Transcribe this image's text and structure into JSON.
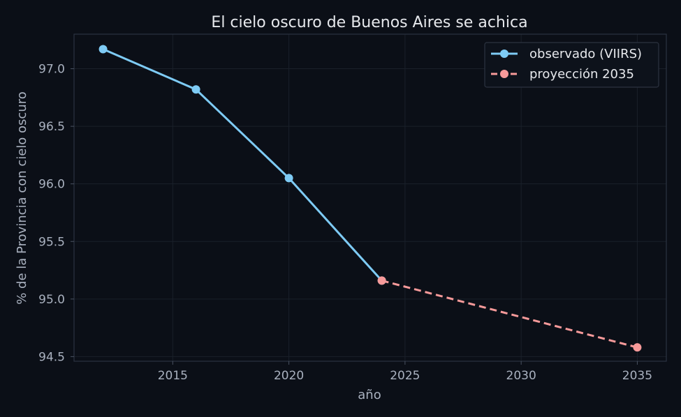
{
  "chart_data": {
    "type": "line",
    "title": "El cielo oscuro de Buenos Aires se achica",
    "xlabel": "año",
    "ylabel": "% de la Provincia con cielo oscuro",
    "xlim": [
      2010.75,
      2036.25
    ],
    "ylim": [
      94.46,
      97.3
    ],
    "xticks": [
      2015,
      2020,
      2025,
      2030,
      2035
    ],
    "yticks": [
      94.5,
      95.0,
      95.5,
      96.0,
      96.5,
      97.0
    ],
    "xtick_labels": [
      "2015",
      "2020",
      "2025",
      "2030",
      "2035"
    ],
    "ytick_labels": [
      "94.5",
      "95.0",
      "95.5",
      "96.0",
      "96.5",
      "97.0"
    ],
    "grid": true,
    "legend_position": "top-right",
    "series": [
      {
        "name": "observado (VIIRS)",
        "color": "#7ecbf5",
        "style": "solid",
        "x": [
          2012,
          2016,
          2020,
          2024
        ],
        "y": [
          97.17,
          96.82,
          96.05,
          95.16
        ]
      },
      {
        "name": "proyección 2035",
        "color": "#f79a9a",
        "style": "dashed",
        "x": [
          2024,
          2035
        ],
        "y": [
          95.16,
          94.58
        ]
      }
    ]
  }
}
